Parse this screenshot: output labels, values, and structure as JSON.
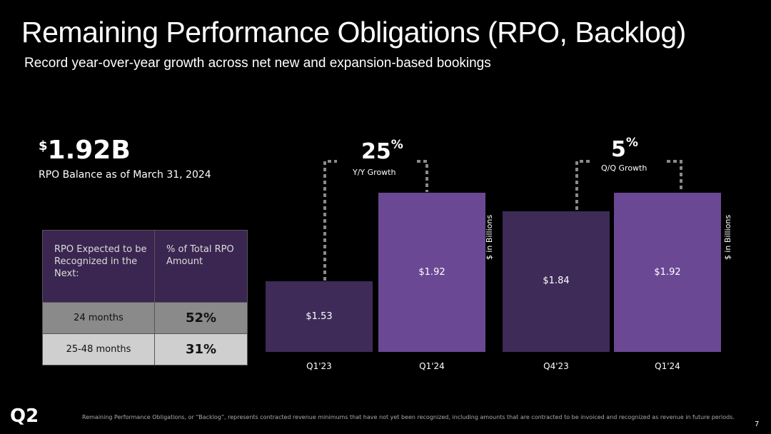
{
  "title": "Remaining Performance Obligations (RPO, Backlog)",
  "subtitle": "Record year-over-year growth across net new and expansion-based bookings",
  "summary": {
    "currency": "$",
    "value": "1.92B",
    "label": "RPO Balance as of March 31, 2024"
  },
  "table": {
    "headers": [
      "RPO Expected to be Recognized in the Next:",
      "% of Total RPO Amount"
    ],
    "rows": [
      [
        "24 months",
        "52%"
      ],
      [
        "25-48 months",
        "31%"
      ]
    ]
  },
  "chart_data": [
    {
      "type": "bar",
      "categories": [
        "Q1'23",
        "Q1'24"
      ],
      "values": [
        1.53,
        1.92
      ],
      "data_labels": [
        "$1.53",
        "$1.92"
      ],
      "colors": [
        "#3e2b58",
        "#6a4893"
      ],
      "annotation": {
        "value": "25",
        "unit": "%",
        "label": "Y/Y Growth"
      },
      "ylabel": "$ in Billions"
    },
    {
      "type": "bar",
      "categories": [
        "Q4'23",
        "Q1'24"
      ],
      "values": [
        1.84,
        1.92
      ],
      "data_labels": [
        "$1.84",
        "$1.92"
      ],
      "colors": [
        "#3e2b58",
        "#6a4893"
      ],
      "annotation": {
        "value": "5",
        "unit": "%",
        "label": "Q/Q Growth"
      },
      "ylabel": "$ in Billions"
    }
  ],
  "footnote": "Remaining Performance Obligations, or “Backlog”, represents contracted revenue minimums that have not yet been recognized, including amounts that are contracted to be invoiced and recognized as revenue in future periods.",
  "logo": "Q2",
  "page_number": "7"
}
